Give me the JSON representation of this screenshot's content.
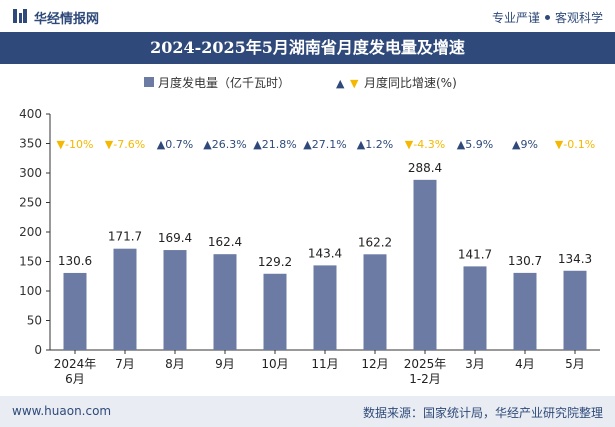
{
  "header": {
    "brand": "华经情报网",
    "tagline_left": "专业严谨",
    "tagline_right": "客观科学"
  },
  "title": "2024-2025年5月湖南省月度发电量及增速",
  "footer": {
    "website": "www.huaon.com",
    "source": "数据来源：国家统计局，华经产业研究院整理"
  },
  "colors": {
    "bar": "#6b7ba4",
    "up": "#2f4a7a",
    "down": "#f5b800",
    "header": "#2f4a7a"
  },
  "chart_data": {
    "type": "bar",
    "categories": [
      "2024年\n6月",
      "7月",
      "8月",
      "9月",
      "10月",
      "11月",
      "12月",
      "2025年\n1-2月",
      "3月",
      "4月",
      "5月"
    ],
    "series": [
      {
        "name": "月度发电量（亿千瓦时）",
        "values": [
          130.6,
          171.7,
          169.4,
          162.4,
          129.2,
          143.4,
          162.2,
          288.4,
          141.7,
          130.7,
          134.3
        ]
      }
    ],
    "growth": {
      "name": "月度同比增速(%)",
      "values": [
        -10,
        -7.6,
        0.7,
        26.3,
        21.8,
        27.1,
        1.2,
        -4.3,
        5.9,
        9,
        -0.1
      ],
      "labels": [
        "-10%",
        "-7.6%",
        "0.7%",
        "26.3%",
        "21.8%",
        "27.1%",
        "1.2%",
        "-4.3%",
        "5.9%",
        "9%",
        "-0.1%"
      ]
    },
    "ylim": [
      0,
      400
    ],
    "yticks": [
      0,
      50,
      100,
      150,
      200,
      250,
      300,
      350,
      400
    ],
    "legend_position": "top-center",
    "grid": false
  }
}
